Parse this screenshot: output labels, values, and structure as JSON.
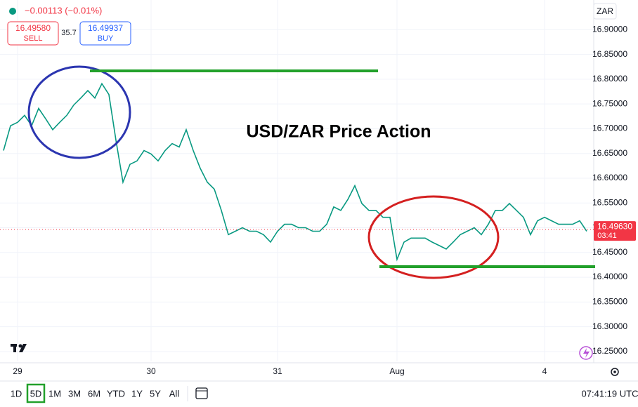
{
  "header": {
    "change": "−0.00113 (−0.01%)",
    "sell_price": "16.49580",
    "sell_label": "SELL",
    "spread": "35.7",
    "buy_price": "16.49937",
    "buy_label": "BUY"
  },
  "currency": "ZAR",
  "chart_data": {
    "type": "line",
    "title": "USD/ZAR Price Action",
    "categories": [
      null,
      null,
      "29",
      null,
      null,
      null,
      null,
      null,
      null,
      null,
      null,
      null,
      null,
      null,
      null,
      null,
      null,
      null,
      null,
      null,
      null,
      "30",
      null,
      null,
      null,
      null,
      null,
      null,
      null,
      null,
      null,
      null,
      null,
      null,
      null,
      null,
      null,
      null,
      null,
      "31",
      null,
      null,
      null,
      null,
      null,
      null,
      null,
      null,
      null,
      null,
      null,
      null,
      null,
      null,
      null,
      null,
      "Aug",
      null,
      null,
      null,
      null,
      null,
      null,
      null,
      null,
      null,
      null,
      null,
      null,
      null,
      null,
      null,
      null,
      null,
      null,
      null,
      null,
      "4",
      null,
      null,
      null,
      null,
      null,
      null
    ],
    "values": [
      16.656,
      16.706,
      16.713,
      16.727,
      16.706,
      16.741,
      16.72,
      16.698,
      16.713,
      16.727,
      16.748,
      16.762,
      16.777,
      16.762,
      16.791,
      16.769,
      16.677,
      16.592,
      16.628,
      16.635,
      16.656,
      16.649,
      16.635,
      16.656,
      16.67,
      16.663,
      16.698,
      16.656,
      16.62,
      16.592,
      16.578,
      16.535,
      16.486,
      16.493,
      16.5,
      16.493,
      16.493,
      16.486,
      16.471,
      16.493,
      16.507,
      16.507,
      16.5,
      16.5,
      16.493,
      16.493,
      16.507,
      16.542,
      16.535,
      16.557,
      16.585,
      16.549,
      16.535,
      16.535,
      16.521,
      16.521,
      16.436,
      16.471,
      16.479,
      16.479,
      16.479,
      16.471,
      16.464,
      16.457,
      16.471,
      16.486,
      16.493,
      16.5,
      16.486,
      16.507,
      16.535,
      16.535,
      16.549,
      16.535,
      16.521,
      16.486,
      16.514,
      16.521,
      16.514,
      16.507,
      16.507,
      16.507,
      16.514,
      16.493
    ],
    "color": "#089981",
    "ylim": [
      16.23,
      16.96
    ],
    "yticks": [
      {
        "value": 16.25,
        "label": "16.25000"
      },
      {
        "value": 16.3,
        "label": "16.30000"
      },
      {
        "value": 16.35,
        "label": "16.35000"
      },
      {
        "value": 16.4,
        "label": "16.40000"
      },
      {
        "value": 16.45,
        "label": "16.45000"
      },
      {
        "value": 16.5,
        "label": "16.50000"
      },
      {
        "value": 16.55,
        "label": "16.55000"
      },
      {
        "value": 16.6,
        "label": "16.60000"
      },
      {
        "value": 16.65,
        "label": "16.65000"
      },
      {
        "value": 16.7,
        "label": "16.70000"
      },
      {
        "value": 16.75,
        "label": "16.75000"
      },
      {
        "value": 16.8,
        "label": "16.80000"
      },
      {
        "value": 16.85,
        "label": "16.85000"
      },
      {
        "value": 16.9,
        "label": "16.90000"
      }
    ],
    "grid": true,
    "current_price": {
      "value": 16.4963,
      "label": "16.49630"
    },
    "countdown": "03:41"
  },
  "toolbar": {
    "ranges": [
      "1D",
      "5D",
      "1M",
      "3M",
      "6M",
      "YTD",
      "1Y",
      "5Y",
      "All"
    ],
    "time": "07:41:19 UTC"
  }
}
